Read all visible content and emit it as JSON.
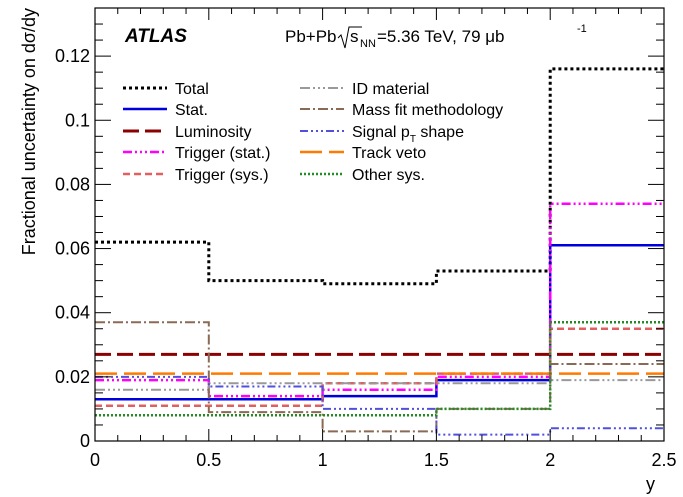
{
  "chart_data": {
    "type": "line",
    "drawstyle": "steps",
    "experiment_label": "ATLAS",
    "collision_label": "Pb+Pb",
    "energy_label": "=5.36 TeV, 79 μb",
    "energy_sqrt_sub": "NN",
    "lumi_exponent": "-1",
    "xlabel": "y",
    "ylabel": "Fractional uncertainty on dσ/dy",
    "xlim": [
      0,
      2.5
    ],
    "ylim": [
      0,
      0.135
    ],
    "x_ticks": [
      "0",
      "0.5",
      "1",
      "1.5",
      "2",
      "2.5"
    ],
    "y_ticks": [
      "0",
      "0.02",
      "0.04",
      "0.06",
      "0.08",
      "0.1",
      "0.12"
    ],
    "grid": false,
    "legend_position": "top-left, two columns",
    "bin_edges": [
      0,
      0.5,
      1.0,
      1.5,
      2.0,
      2.5
    ],
    "series": [
      {
        "name": "Total",
        "color": "#000000",
        "dash": "3,3",
        "width": 3,
        "values": [
          0.062,
          0.05,
          0.049,
          0.053,
          0.116
        ]
      },
      {
        "name": "Stat.",
        "color": "#0000dd",
        "dash": "",
        "width": 2.5,
        "values": [
          0.013,
          0.013,
          0.014,
          0.019,
          0.061
        ]
      },
      {
        "name": "Luminosity",
        "color": "#8b0000",
        "dash": "16,6",
        "width": 3,
        "values": [
          0.027,
          0.027,
          0.027,
          0.027,
          0.027
        ]
      },
      {
        "name": "Trigger (stat.)",
        "color": "#ff00ff",
        "dash": "9,3,2,3,2,3,2,3",
        "width": 2.5,
        "values": [
          0.019,
          0.014,
          0.016,
          0.02,
          0.074
        ]
      },
      {
        "name": "Trigger (sys.)",
        "color": "#e06060",
        "dash": "7,4",
        "width": 2.5,
        "values": [
          0.011,
          0.011,
          0.018,
          0.021,
          0.035
        ]
      },
      {
        "name": "ID material",
        "color": "#999999",
        "dash": "10,3,2,3,2,3,2,3",
        "width": 2,
        "values": [
          0.016,
          0.018,
          0.018,
          0.018,
          0.019
        ]
      },
      {
        "name": "Mass fit methodology",
        "color": "#8b6a55",
        "dash": "10,3,2,3",
        "width": 2,
        "values": [
          0.037,
          0.009,
          0.003,
          0.01,
          0.024
        ]
      },
      {
        "name": "Signal p",
        "name_sub": "T",
        "name_suffix": " shape",
        "color": "#5050dd",
        "dash": "8,3,2,3,2,3,2,3",
        "width": 2,
        "values": [
          0.02,
          0.017,
          0.01,
          0.002,
          0.004
        ]
      },
      {
        "name": "Track veto",
        "color": "#ff7a00",
        "dash": "22,7",
        "width": 2.5,
        "values": [
          0.021,
          0.021,
          0.021,
          0.021,
          0.021
        ]
      },
      {
        "name": "Other sys.",
        "color": "#228b22",
        "dash": "2,2",
        "width": 2.5,
        "values": [
          0.008,
          0.008,
          0.008,
          0.01,
          0.037
        ]
      }
    ]
  }
}
